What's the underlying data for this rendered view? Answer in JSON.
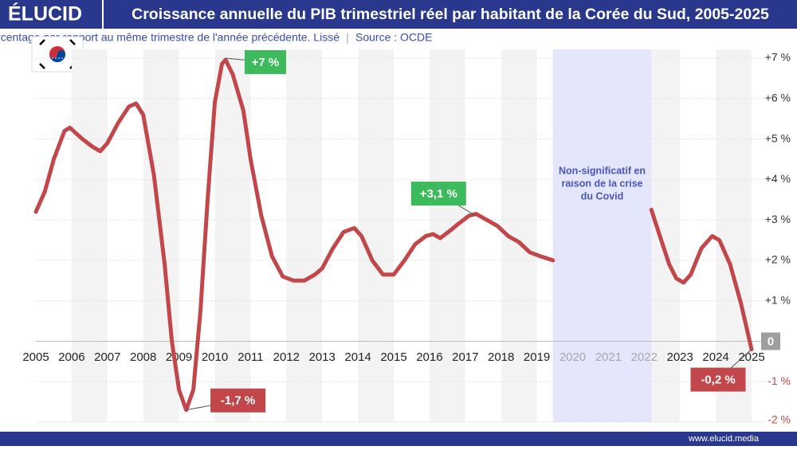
{
  "chart_data": {
    "type": "line",
    "brand": "ÉLUCID",
    "title": "Croissance annuelle du PIB trimestriel réel par habitant de la Corée du Sud, 2005-2025",
    "subtitle": "En pourcentage par rapport au même trimestre de l'année précédente. Lissé",
    "source": "Source : OCDE",
    "footer": "www.elucid.media",
    "xlim": [
      2005,
      2025
    ],
    "xticks": [
      2005,
      2006,
      2007,
      2008,
      2009,
      2010,
      2011,
      2012,
      2013,
      2014,
      2015,
      2016,
      2017,
      2018,
      2019,
      2020,
      2021,
      2022,
      2023,
      2024,
      2025
    ],
    "ylim": [
      -2,
      7
    ],
    "yticks": [
      {
        "value": -2,
        "label": "-2 %"
      },
      {
        "value": -1,
        "label": "-1 %"
      },
      0,
      {
        "value": 1,
        "label": "+1 %"
      },
      {
        "value": 2,
        "label": "+2 %"
      },
      {
        "value": 3,
        "label": "+3 %"
      },
      {
        "value": 4,
        "label": "+4 %"
      },
      {
        "value": 5,
        "label": "+5 %"
      },
      {
        "value": 6,
        "label": "+6 %"
      },
      {
        "value": 7,
        "label": "+7 %"
      }
    ],
    "grid": true,
    "series": [
      {
        "name": "Corée du Sud",
        "color": "#c1474a",
        "x": [
          2005.0,
          2005.25,
          2005.5,
          2005.8,
          2005.95,
          2006.3,
          2006.6,
          2006.8,
          2007.0,
          2007.3,
          2007.6,
          2007.8,
          2008.0,
          2008.3,
          2008.6,
          2008.8,
          2009.0,
          2009.2,
          2009.4,
          2009.6,
          2009.8,
          2010.0,
          2010.2,
          2010.3,
          2010.5,
          2010.8,
          2011.0,
          2011.3,
          2011.6,
          2011.9,
          2012.2,
          2012.5,
          2012.8,
          2013.0,
          2013.3,
          2013.6,
          2013.9,
          2014.1,
          2014.4,
          2014.7,
          2015.0,
          2015.3,
          2015.6,
          2015.9,
          2016.1,
          2016.3,
          2016.6,
          2016.8,
          2017.1,
          2017.3,
          2017.6,
          2017.9,
          2018.2,
          2018.5,
          2018.8,
          2019.1,
          2019.45,
          2020.8,
          2022.2,
          2022.4,
          2022.7,
          2022.9,
          2023.1,
          2023.3,
          2023.6,
          2023.9,
          2024.1,
          2024.4,
          2024.7,
          2025.0
        ],
        "values": [
          3.2,
          3.7,
          4.5,
          5.2,
          5.28,
          5.0,
          4.8,
          4.7,
          4.9,
          5.4,
          5.8,
          5.88,
          5.6,
          4.1,
          1.9,
          0,
          -1.2,
          -1.7,
          -1.2,
          0.75,
          3.5,
          5.9,
          6.86,
          6.96,
          6.6,
          5.7,
          4.5,
          3.1,
          2.1,
          1.6,
          1.5,
          1.5,
          1.65,
          1.8,
          2.3,
          2.7,
          2.8,
          2.6,
          2.0,
          1.65,
          1.65,
          2.0,
          2.4,
          2.6,
          2.65,
          2.55,
          2.75,
          2.9,
          3.1,
          3.15,
          3.0,
          2.85,
          2.6,
          2.45,
          2.2,
          2.1,
          2.0,
          null,
          3.25,
          2.7,
          1.9,
          1.55,
          1.45,
          1.65,
          2.3,
          2.6,
          2.5,
          1.9,
          0.95,
          -0.2
        ]
      }
    ],
    "annotations": [
      {
        "text": "+7 %",
        "x": 2010.3,
        "y": 7
      },
      {
        "text": "-1,7 %",
        "x": 2009.2,
        "y": -1.7
      },
      {
        "text": "+3,1 %",
        "x": 2017.3,
        "y": 3.1
      },
      {
        "text": "-0,2 %",
        "x": 2025.0,
        "y": -0.2
      }
    ],
    "note": [
      "Non-significatif en",
      "raison de la crise",
      "du Covid"
    ]
  }
}
